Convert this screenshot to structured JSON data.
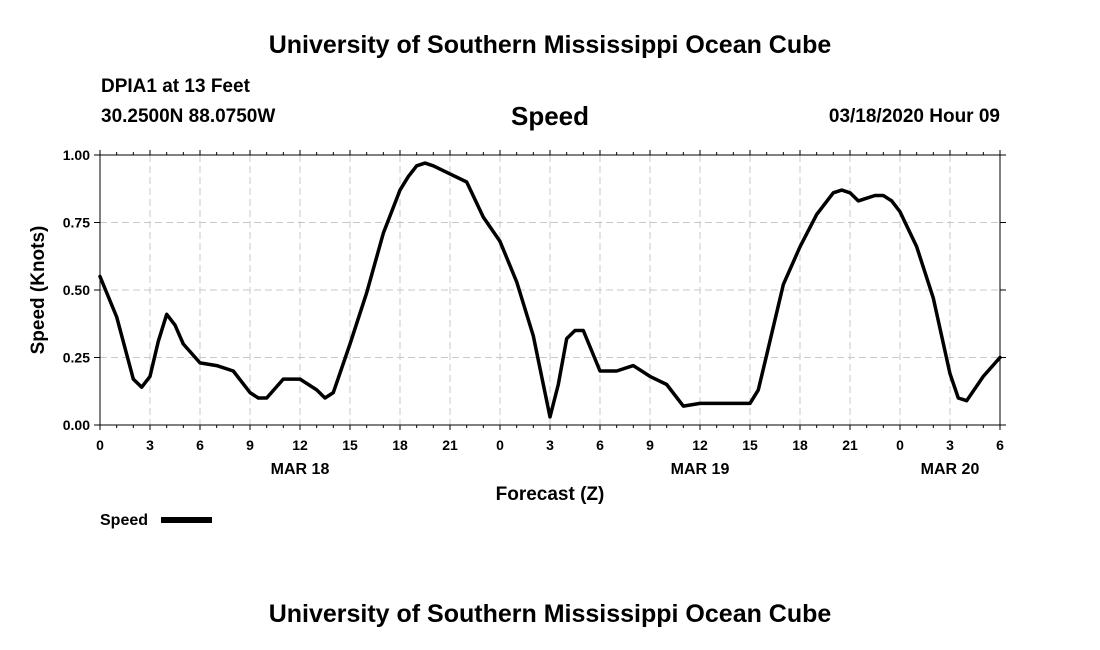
{
  "header": {
    "title": "University of Southern Mississippi Ocean Cube",
    "station": "DPIA1 at 13 Feet",
    "coordinates": "30.2500N 88.0750W",
    "datetime": "03/18/2020 Hour 09"
  },
  "footer": {
    "title": "University of Southern Mississippi Ocean Cube"
  },
  "chart_data": {
    "type": "line",
    "title": "Speed",
    "xlabel": "Forecast (Z)",
    "ylabel": "Speed (Knots)",
    "xlim": [
      0,
      54
    ],
    "ylim": [
      0,
      1
    ],
    "grid": true,
    "yticks": [
      "0.00",
      "0.25",
      "0.50",
      "0.75",
      "1.00"
    ],
    "xticks": [
      "0",
      "3",
      "6",
      "9",
      "12",
      "15",
      "18",
      "21",
      "0",
      "3",
      "6",
      "9",
      "12",
      "15",
      "18",
      "21",
      "0",
      "3",
      "6"
    ],
    "date_labels": [
      {
        "label": "MAR 18",
        "at_hour": 12
      },
      {
        "label": "MAR 19",
        "at_hour": 36
      },
      {
        "label": "MAR 20",
        "at_hour": 51
      }
    ],
    "legend": {
      "placement": "bottom-left",
      "label": "Speed"
    },
    "series": [
      {
        "name": "Speed",
        "color": "#000000",
        "points": [
          [
            0,
            0.55
          ],
          [
            1,
            0.4
          ],
          [
            2,
            0.17
          ],
          [
            2.5,
            0.14
          ],
          [
            3,
            0.18
          ],
          [
            3.5,
            0.31
          ],
          [
            4,
            0.41
          ],
          [
            4.5,
            0.37
          ],
          [
            5,
            0.3
          ],
          [
            6,
            0.23
          ],
          [
            7,
            0.22
          ],
          [
            8,
            0.2
          ],
          [
            9,
            0.12
          ],
          [
            9.5,
            0.1
          ],
          [
            10,
            0.1
          ],
          [
            11,
            0.17
          ],
          [
            12,
            0.17
          ],
          [
            13,
            0.13
          ],
          [
            13.5,
            0.1
          ],
          [
            14,
            0.12
          ],
          [
            15,
            0.3
          ],
          [
            16,
            0.49
          ],
          [
            17,
            0.71
          ],
          [
            18,
            0.87
          ],
          [
            18.5,
            0.92
          ],
          [
            19,
            0.96
          ],
          [
            19.5,
            0.97
          ],
          [
            20,
            0.96
          ],
          [
            21,
            0.93
          ],
          [
            22,
            0.9
          ],
          [
            23,
            0.77
          ],
          [
            24,
            0.68
          ],
          [
            25,
            0.53
          ],
          [
            26,
            0.33
          ],
          [
            27,
            0.03
          ],
          [
            27.5,
            0.15
          ],
          [
            28,
            0.32
          ],
          [
            28.5,
            0.35
          ],
          [
            29,
            0.35
          ],
          [
            30,
            0.2
          ],
          [
            31,
            0.2
          ],
          [
            32,
            0.22
          ],
          [
            33,
            0.18
          ],
          [
            34,
            0.15
          ],
          [
            35,
            0.07
          ],
          [
            36,
            0.08
          ],
          [
            37,
            0.08
          ],
          [
            38,
            0.08
          ],
          [
            39,
            0.08
          ],
          [
            39.5,
            0.13
          ],
          [
            40,
            0.26
          ],
          [
            41,
            0.52
          ],
          [
            42,
            0.66
          ],
          [
            43,
            0.78
          ],
          [
            44,
            0.86
          ],
          [
            44.5,
            0.87
          ],
          [
            45,
            0.86
          ],
          [
            45.5,
            0.83
          ],
          [
            46,
            0.84
          ],
          [
            46.5,
            0.85
          ],
          [
            47,
            0.85
          ],
          [
            47.5,
            0.83
          ],
          [
            48,
            0.79
          ],
          [
            49,
            0.66
          ],
          [
            50,
            0.47
          ],
          [
            51,
            0.19
          ],
          [
            51.5,
            0.1
          ],
          [
            52,
            0.09
          ],
          [
            53,
            0.18
          ],
          [
            54,
            0.25
          ]
        ]
      }
    ]
  }
}
